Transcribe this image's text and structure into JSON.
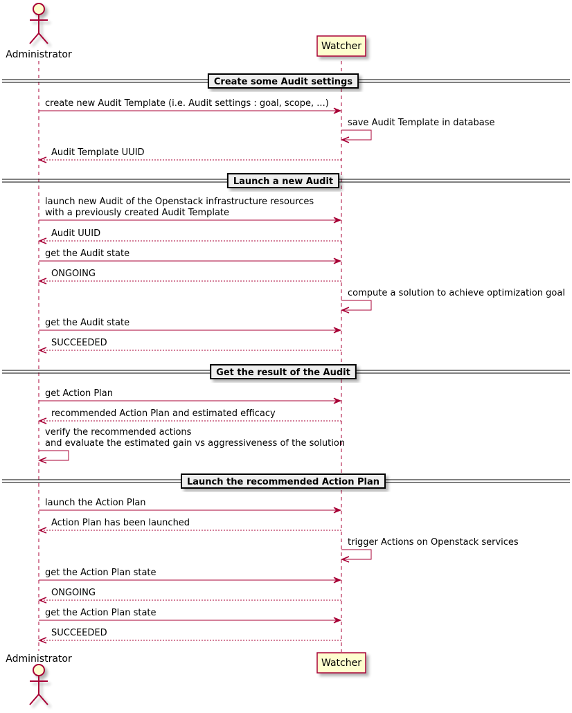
{
  "participants": [
    {
      "id": "admin",
      "label": "Administrator",
      "kind": "actor"
    },
    {
      "id": "watcher",
      "label": "Watcher",
      "kind": "participant"
    }
  ],
  "colors": {
    "line": "#A80036",
    "fill": "#FEFECE",
    "separator_fill": "#EEEEEE"
  },
  "events": [
    {
      "type": "separator",
      "label": "Create some Audit settings"
    },
    {
      "type": "message",
      "from": "admin",
      "to": "watcher",
      "style": "solid",
      "lines": [
        "create new Audit Template (i.e. Audit settings : goal, scope, ...)"
      ]
    },
    {
      "type": "message",
      "from": "watcher",
      "to": "watcher",
      "style": "solid",
      "lines": [
        "save Audit Template in database"
      ]
    },
    {
      "type": "message",
      "from": "watcher",
      "to": "admin",
      "style": "dashed",
      "lines": [
        "Audit Template UUID"
      ]
    },
    {
      "type": "separator",
      "label": "Launch a new Audit"
    },
    {
      "type": "message",
      "from": "admin",
      "to": "watcher",
      "style": "solid",
      "lines": [
        "launch new Audit of the Openstack infrastructure resources",
        "with a previously created Audit Template"
      ]
    },
    {
      "type": "message",
      "from": "watcher",
      "to": "admin",
      "style": "dashed",
      "lines": [
        "Audit UUID"
      ]
    },
    {
      "type": "message",
      "from": "admin",
      "to": "watcher",
      "style": "solid",
      "lines": [
        "get the Audit state"
      ]
    },
    {
      "type": "message",
      "from": "watcher",
      "to": "admin",
      "style": "dashed",
      "lines": [
        "ONGOING"
      ]
    },
    {
      "type": "message",
      "from": "watcher",
      "to": "watcher",
      "style": "solid",
      "lines": [
        "compute a solution to achieve optimization goal"
      ]
    },
    {
      "type": "message",
      "from": "admin",
      "to": "watcher",
      "style": "solid",
      "lines": [
        "get the Audit state"
      ]
    },
    {
      "type": "message",
      "from": "watcher",
      "to": "admin",
      "style": "dashed",
      "lines": [
        "SUCCEEDED"
      ]
    },
    {
      "type": "separator",
      "label": "Get the result of the Audit"
    },
    {
      "type": "message",
      "from": "admin",
      "to": "watcher",
      "style": "solid",
      "lines": [
        "get Action Plan"
      ]
    },
    {
      "type": "message",
      "from": "watcher",
      "to": "admin",
      "style": "dashed",
      "lines": [
        "recommended Action Plan and estimated efficacy"
      ]
    },
    {
      "type": "message",
      "from": "admin",
      "to": "admin",
      "style": "solid",
      "lines": [
        "verify the recommended actions",
        "and evaluate the estimated gain vs aggressiveness of the solution"
      ]
    },
    {
      "type": "separator",
      "label": "Launch the recommended Action Plan"
    },
    {
      "type": "message",
      "from": "admin",
      "to": "watcher",
      "style": "solid",
      "lines": [
        "launch the Action Plan"
      ]
    },
    {
      "type": "message",
      "from": "watcher",
      "to": "admin",
      "style": "dashed",
      "lines": [
        "Action Plan has been launched"
      ]
    },
    {
      "type": "message",
      "from": "watcher",
      "to": "watcher",
      "style": "solid",
      "lines": [
        "trigger Actions on Openstack services"
      ]
    },
    {
      "type": "message",
      "from": "admin",
      "to": "watcher",
      "style": "solid",
      "lines": [
        "get the Action Plan state"
      ]
    },
    {
      "type": "message",
      "from": "watcher",
      "to": "admin",
      "style": "dashed",
      "lines": [
        "ONGOING"
      ]
    },
    {
      "type": "message",
      "from": "admin",
      "to": "watcher",
      "style": "solid",
      "lines": [
        "get the Action Plan state"
      ]
    },
    {
      "type": "message",
      "from": "watcher",
      "to": "admin",
      "style": "dashed",
      "lines": [
        "SUCCEEDED"
      ]
    }
  ]
}
